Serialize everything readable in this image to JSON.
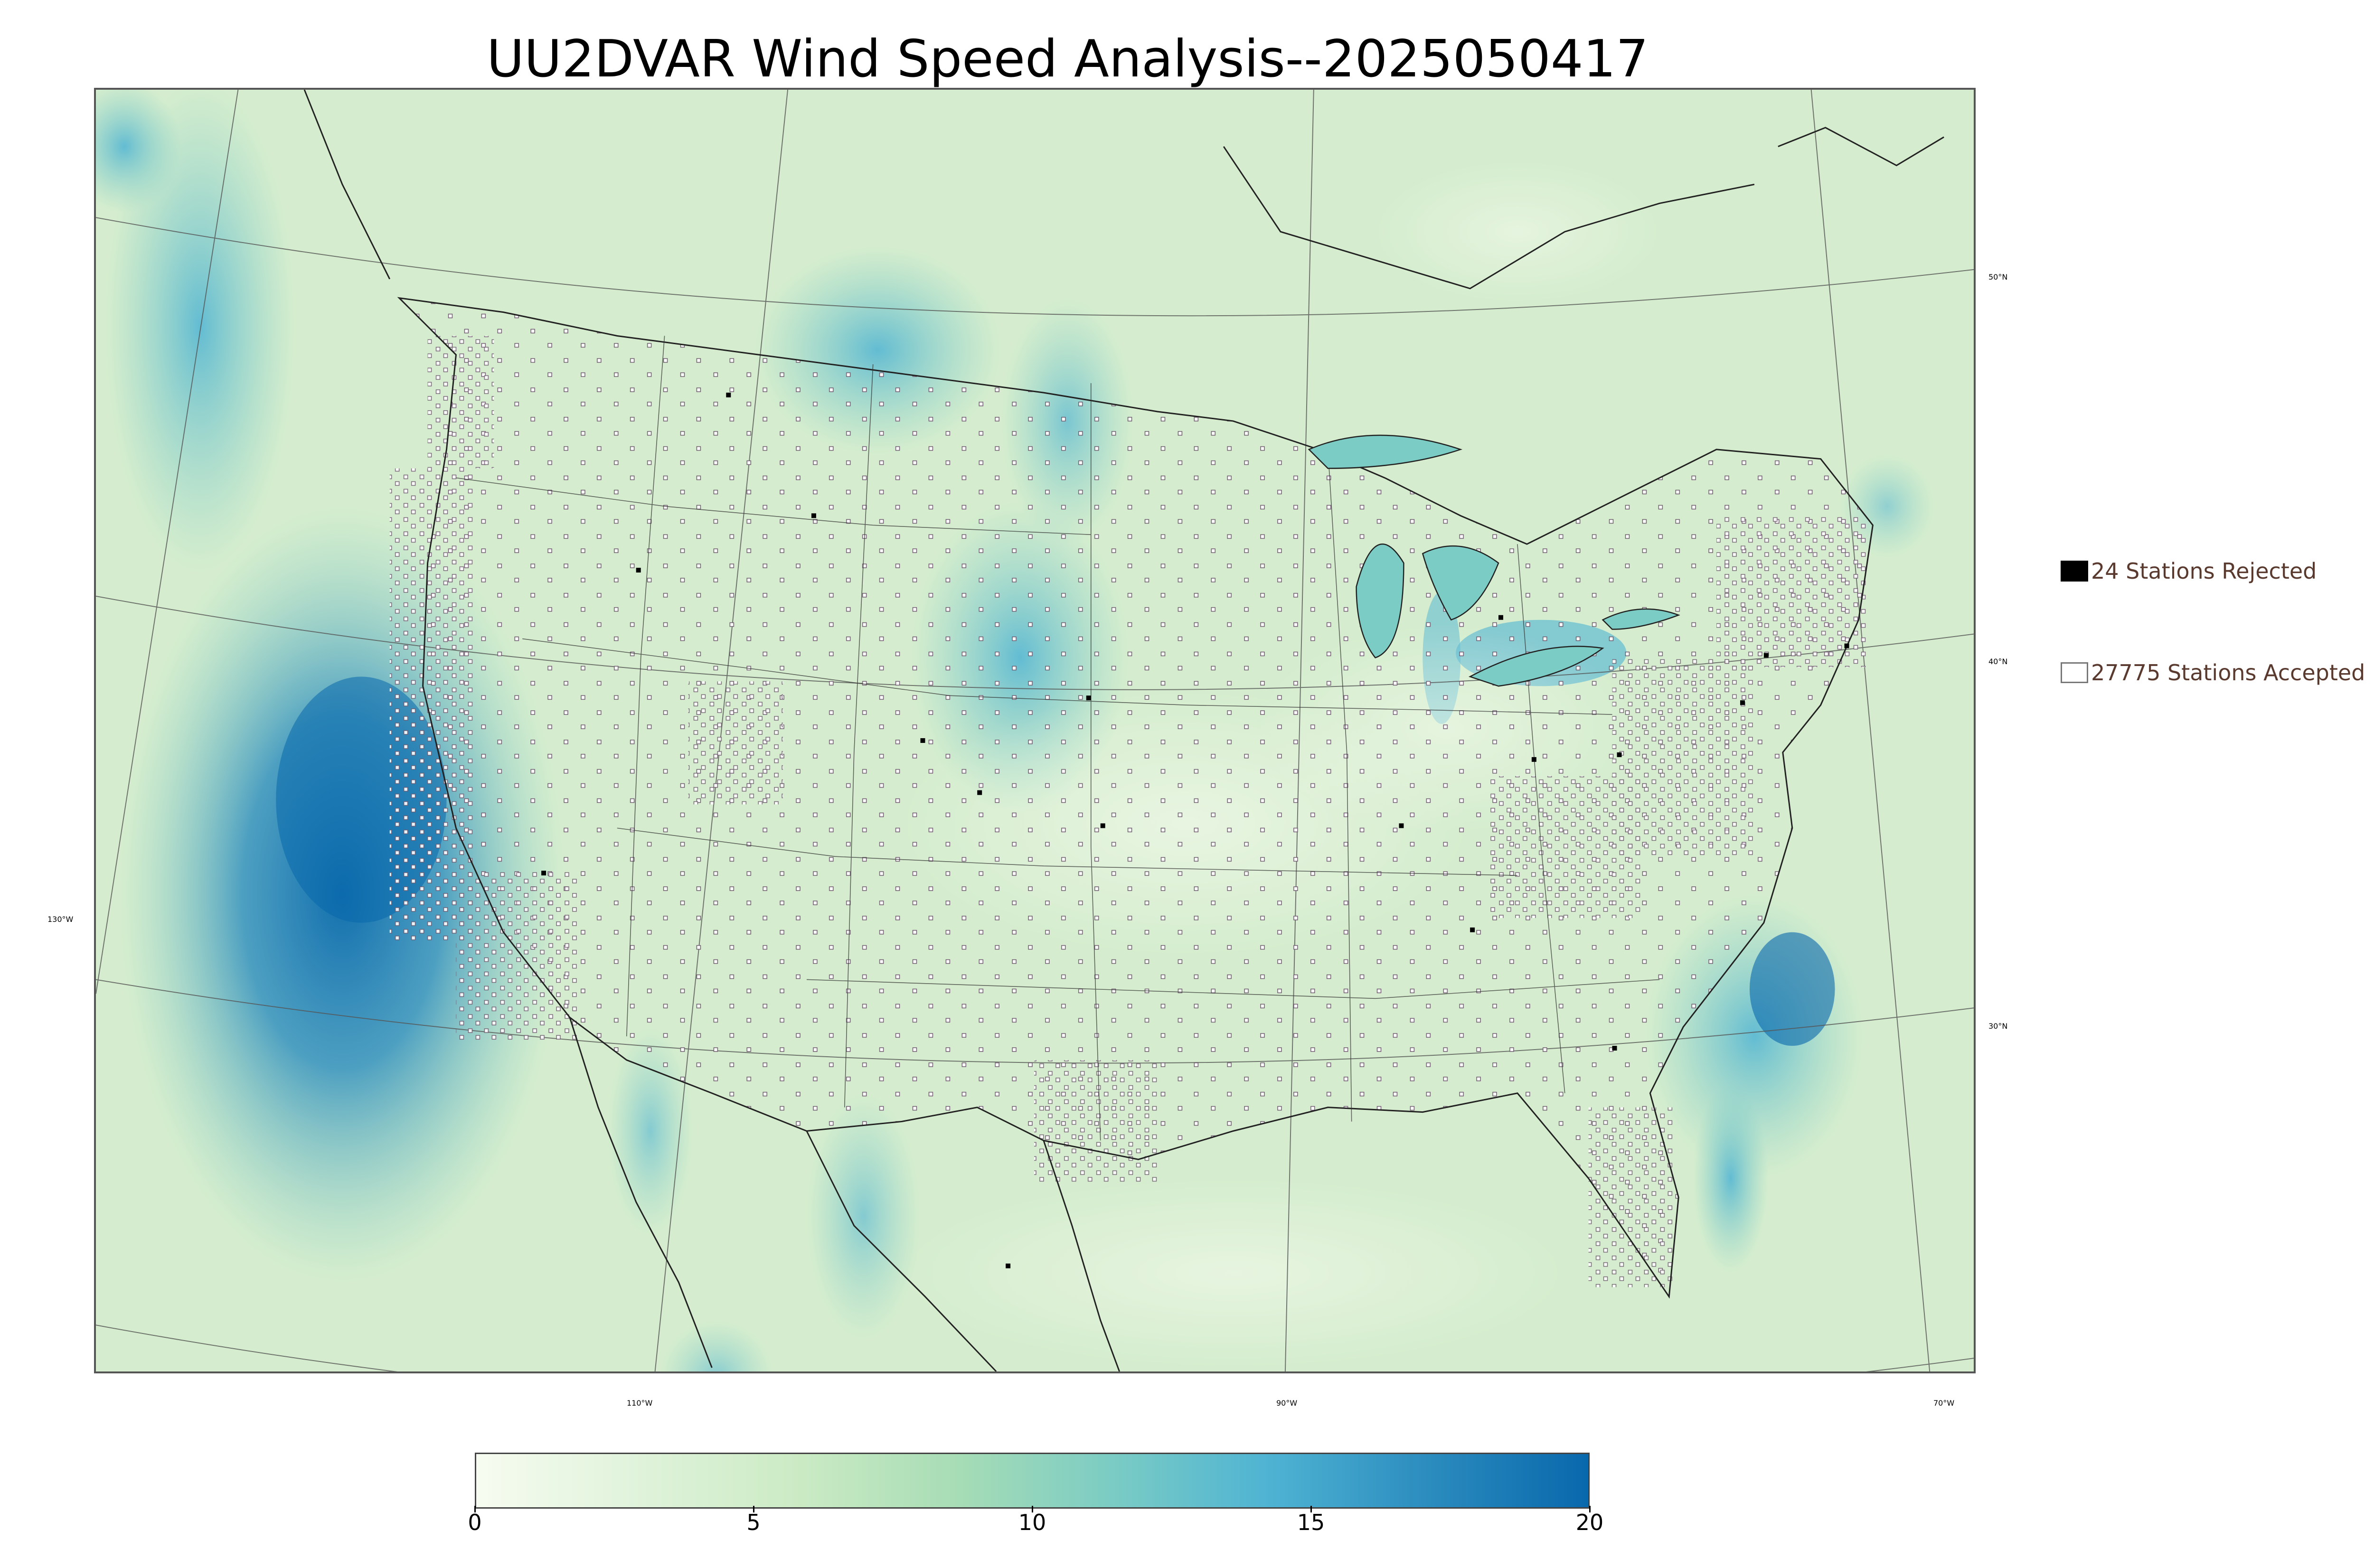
{
  "title": "UU2DVAR Wind Speed Analysis--2025050417",
  "legend": {
    "rejected": {
      "label": "24 Stations Rejected",
      "color": "#000000"
    },
    "accepted": {
      "label": "27775 Stations Accepted",
      "color": "#ffffff"
    }
  },
  "lat_labels": [
    "50°N",
    "40°N",
    "30°N"
  ],
  "lon_labels": [
    "130°W",
    "110°W",
    "90°W",
    "70°W"
  ],
  "colorbar": {
    "ticks": [
      "0",
      "5",
      "10",
      "15",
      "20"
    ],
    "min": 0,
    "max": 20,
    "colors": [
      "#f7fcf0",
      "#e0f3db",
      "#ccebc5",
      "#a8ddb5",
      "#7bccc4",
      "#4eb3d3",
      "#2b8cbe",
      "#0868ac"
    ]
  },
  "map_colors": {
    "land": "#dff1d6",
    "ocean": "#bfe4c3",
    "strong_wind": "#2b8cbe",
    "very_strong_wind": "#0868ac",
    "boundaries": "#333333"
  }
}
